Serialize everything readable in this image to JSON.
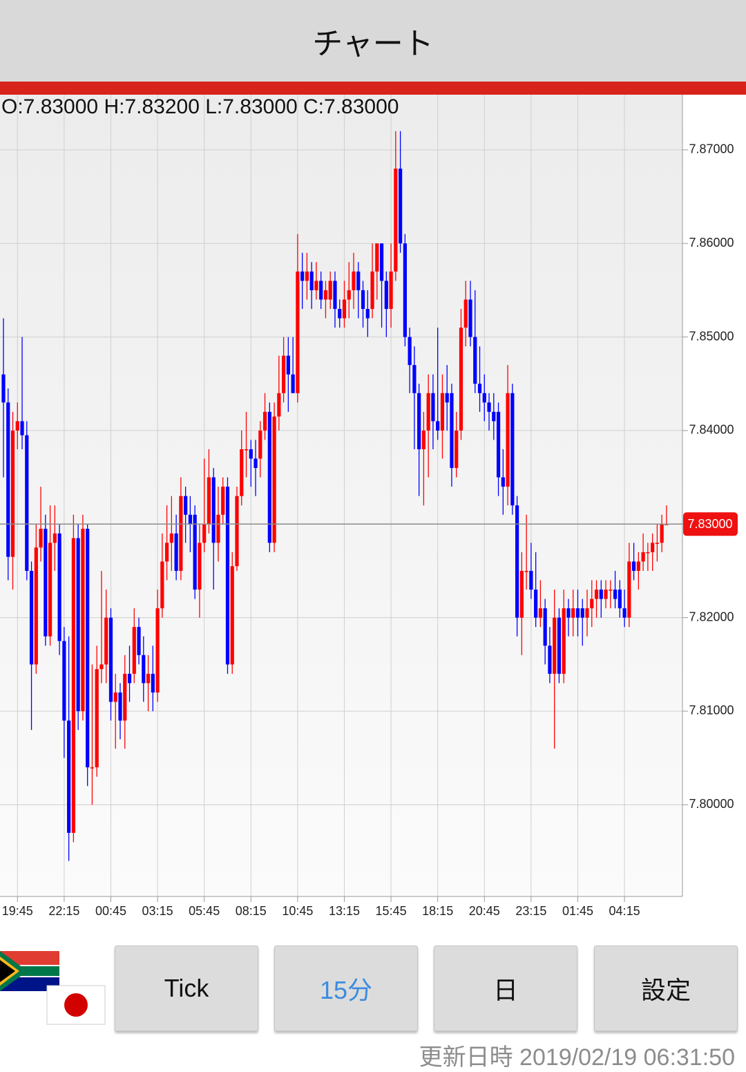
{
  "header": {
    "title": "チャート"
  },
  "ohlc_text": "O:7.83000 H:7.83200 L:7.83000 C:7.83000",
  "chart_data": {
    "type": "candlestick",
    "up_color": "#ff0000",
    "down_color": "#0000ff",
    "grid": true,
    "ylim": [
      7.7902,
      7.8759
    ],
    "yticks": [
      {
        "value": 7.8,
        "label": "7.80000"
      },
      {
        "value": 7.81,
        "label": "7.81000"
      },
      {
        "value": 7.82,
        "label": "7.82000"
      },
      {
        "value": 7.83,
        "label": "7.83000"
      },
      {
        "value": 7.84,
        "label": "7.84000"
      },
      {
        "value": 7.85,
        "label": "7.85000"
      },
      {
        "value": 7.86,
        "label": "7.86000"
      },
      {
        "value": 7.87,
        "label": "7.87000"
      }
    ],
    "xticks": [
      {
        "value": 3,
        "label": "19:45"
      },
      {
        "value": 13,
        "label": "22:15"
      },
      {
        "value": 23,
        "label": "00:45"
      },
      {
        "value": 33,
        "label": "03:15"
      },
      {
        "value": 43,
        "label": "05:45"
      },
      {
        "value": 53,
        "label": "08:15"
      },
      {
        "value": 63,
        "label": "10:45"
      },
      {
        "value": 73,
        "label": "13:15"
      },
      {
        "value": 83,
        "label": "15:45"
      },
      {
        "value": 93,
        "label": "18:15"
      },
      {
        "value": 103,
        "label": "20:45"
      },
      {
        "value": 113,
        "label": "23:15"
      },
      {
        "value": 123,
        "label": "01:45"
      },
      {
        "value": 133,
        "label": "04:15"
      }
    ],
    "last_price": {
      "value": 7.83,
      "label": "7.83000"
    },
    "candles": [
      [
        7.846,
        7.852,
        7.835,
        7.843
      ],
      [
        7.843,
        7.8445,
        7.824,
        7.8265
      ],
      [
        7.8265,
        7.842,
        7.823,
        7.84
      ],
      [
        7.84,
        7.843,
        7.838,
        7.841
      ],
      [
        7.841,
        7.85,
        7.838,
        7.8395
      ],
      [
        7.8395,
        7.841,
        7.824,
        7.825
      ],
      [
        7.825,
        7.826,
        7.808,
        7.815
      ],
      [
        7.815,
        7.83,
        7.814,
        7.8275
      ],
      [
        7.8275,
        7.834,
        7.826,
        7.8295
      ],
      [
        7.8295,
        7.831,
        7.817,
        7.818
      ],
      [
        7.818,
        7.832,
        7.817,
        7.828
      ],
      [
        7.828,
        7.832,
        7.825,
        7.829
      ],
      [
        7.829,
        7.83,
        7.816,
        7.8175
      ],
      [
        7.8175,
        7.819,
        7.805,
        7.809
      ],
      [
        7.809,
        7.818,
        7.794,
        7.797
      ],
      [
        7.797,
        7.831,
        7.796,
        7.8285
      ],
      [
        7.8285,
        7.83,
        7.808,
        7.81
      ],
      [
        7.81,
        7.831,
        7.809,
        7.8295
      ],
      [
        7.8295,
        7.83,
        7.802,
        7.804
      ],
      [
        7.804,
        7.815,
        7.8,
        7.804
      ],
      [
        7.804,
        7.817,
        7.803,
        7.8145
      ],
      [
        7.8145,
        7.825,
        7.813,
        7.815
      ],
      [
        7.815,
        7.823,
        7.813,
        7.82
      ],
      [
        7.82,
        7.821,
        7.809,
        7.811
      ],
      [
        7.811,
        7.814,
        7.806,
        7.812
      ],
      [
        7.812,
        7.813,
        7.807,
        7.809
      ],
      [
        7.809,
        7.816,
        7.806,
        7.814
      ],
      [
        7.814,
        7.817,
        7.811,
        7.813
      ],
      [
        7.814,
        7.821,
        7.813,
        7.819
      ],
      [
        7.819,
        7.82,
        7.815,
        7.816
      ],
      [
        7.816,
        7.818,
        7.811,
        7.813
      ],
      [
        7.813,
        7.816,
        7.81,
        7.814
      ],
      [
        7.814,
        7.817,
        7.81,
        7.812
      ],
      [
        7.812,
        7.823,
        7.811,
        7.821
      ],
      [
        7.821,
        7.829,
        7.82,
        7.826
      ],
      [
        7.826,
        7.832,
        7.824,
        7.828
      ],
      [
        7.828,
        7.833,
        7.825,
        7.829
      ],
      [
        7.829,
        7.831,
        7.824,
        7.825
      ],
      [
        7.825,
        7.835,
        7.824,
        7.833
      ],
      [
        7.833,
        7.834,
        7.828,
        7.831
      ],
      [
        7.831,
        7.833,
        7.827,
        7.83
      ],
      [
        7.831,
        7.832,
        7.822,
        7.823
      ],
      [
        7.823,
        7.83,
        7.82,
        7.828
      ],
      [
        7.828,
        7.837,
        7.827,
        7.83
      ],
      [
        7.83,
        7.838,
        7.829,
        7.835
      ],
      [
        7.835,
        7.836,
        7.823,
        7.828
      ],
      [
        7.828,
        7.834,
        7.826,
        7.831
      ],
      [
        7.831,
        7.835,
        7.83,
        7.834
      ],
      [
        7.834,
        7.835,
        7.814,
        7.815
      ],
      [
        7.815,
        7.827,
        7.814,
        7.8255
      ],
      [
        7.8255,
        7.834,
        7.825,
        7.833
      ],
      [
        7.833,
        7.84,
        7.832,
        7.838
      ],
      [
        7.838,
        7.842,
        7.835,
        7.838
      ],
      [
        7.838,
        7.839,
        7.834,
        7.837
      ],
      [
        7.837,
        7.839,
        7.833,
        7.836
      ],
      [
        7.837,
        7.841,
        7.835,
        7.84
      ],
      [
        7.84,
        7.844,
        7.839,
        7.842
      ],
      [
        7.842,
        7.843,
        7.827,
        7.828
      ],
      [
        7.828,
        7.843,
        7.827,
        7.8415
      ],
      [
        7.8415,
        7.848,
        7.84,
        7.844
      ],
      [
        7.844,
        7.85,
        7.843,
        7.848
      ],
      [
        7.848,
        7.85,
        7.842,
        7.846
      ],
      [
        7.846,
        7.85,
        7.844,
        7.844
      ],
      [
        7.844,
        7.861,
        7.843,
        7.857
      ],
      [
        7.857,
        7.859,
        7.853,
        7.856
      ],
      [
        7.856,
        7.859,
        7.854,
        7.857
      ],
      [
        7.857,
        7.858,
        7.853,
        7.855
      ],
      [
        7.855,
        7.858,
        7.854,
        7.856
      ],
      [
        7.856,
        7.857,
        7.853,
        7.854
      ],
      [
        7.854,
        7.856,
        7.852,
        7.855
      ],
      [
        7.854,
        7.857,
        7.853,
        7.856
      ],
      [
        7.856,
        7.857,
        7.851,
        7.853
      ],
      [
        7.853,
        7.854,
        7.851,
        7.852
      ],
      [
        7.852,
        7.856,
        7.851,
        7.854
      ],
      [
        7.854,
        7.858,
        7.852,
        7.855
      ],
      [
        7.855,
        7.859,
        7.853,
        7.857
      ],
      [
        7.857,
        7.858,
        7.852,
        7.855
      ],
      [
        7.855,
        7.856,
        7.851,
        7.853
      ],
      [
        7.853,
        7.855,
        7.85,
        7.852
      ],
      [
        7.853,
        7.86,
        7.852,
        7.857
      ],
      [
        7.857,
        7.86,
        7.854,
        7.86
      ],
      [
        7.86,
        7.86,
        7.851,
        7.856
      ],
      [
        7.856,
        7.857,
        7.85,
        7.853
      ],
      [
        7.853,
        7.86,
        7.851,
        7.857
      ],
      [
        7.857,
        7.872,
        7.856,
        7.868
      ],
      [
        7.868,
        7.872,
        7.859,
        7.86
      ],
      [
        7.86,
        7.861,
        7.849,
        7.85
      ],
      [
        7.85,
        7.851,
        7.844,
        7.847
      ],
      [
        7.847,
        7.849,
        7.838,
        7.844
      ],
      [
        7.844,
        7.845,
        7.833,
        7.838
      ],
      [
        7.838,
        7.842,
        7.832,
        7.84
      ],
      [
        7.84,
        7.846,
        7.835,
        7.844
      ],
      [
        7.844,
        7.846,
        7.838,
        7.841
      ],
      [
        7.841,
        7.851,
        7.839,
        7.84
      ],
      [
        7.84,
        7.846,
        7.837,
        7.844
      ],
      [
        7.844,
        7.847,
        7.84,
        7.843
      ],
      [
        7.844,
        7.845,
        7.834,
        7.836
      ],
      [
        7.836,
        7.842,
        7.835,
        7.84
      ],
      [
        7.84,
        7.853,
        7.839,
        7.851
      ],
      [
        7.851,
        7.856,
        7.849,
        7.854
      ],
      [
        7.854,
        7.856,
        7.849,
        7.85
      ],
      [
        7.85,
        7.855,
        7.844,
        7.845
      ],
      [
        7.845,
        7.849,
        7.842,
        7.844
      ],
      [
        7.844,
        7.846,
        7.841,
        7.843
      ],
      [
        7.843,
        7.844,
        7.84,
        7.842
      ],
      [
        7.842,
        7.844,
        7.839,
        7.841
      ],
      [
        7.842,
        7.843,
        7.833,
        7.835
      ],
      [
        7.835,
        7.838,
        7.831,
        7.834
      ],
      [
        7.834,
        7.847,
        7.832,
        7.844
      ],
      [
        7.844,
        7.845,
        7.831,
        7.832
      ],
      [
        7.832,
        7.833,
        7.818,
        7.82
      ],
      [
        7.82,
        7.827,
        7.816,
        7.825
      ],
      [
        7.825,
        7.831,
        7.823,
        7.825
      ],
      [
        7.825,
        7.828,
        7.822,
        7.823
      ],
      [
        7.823,
        7.827,
        7.819,
        7.82
      ],
      [
        7.82,
        7.824,
        7.819,
        7.821
      ],
      [
        7.821,
        7.822,
        7.815,
        7.817
      ],
      [
        7.817,
        7.819,
        7.813,
        7.814
      ],
      [
        7.814,
        7.823,
        7.806,
        7.82
      ],
      [
        7.82,
        7.821,
        7.813,
        7.814
      ],
      [
        7.814,
        7.823,
        7.813,
        7.821
      ],
      [
        7.821,
        7.822,
        7.818,
        7.82
      ],
      [
        7.82,
        7.823,
        7.818,
        7.821
      ],
      [
        7.821,
        7.823,
        7.818,
        7.82
      ],
      [
        7.821,
        7.822,
        7.817,
        7.82
      ],
      [
        7.82,
        7.823,
        7.818,
        7.821
      ],
      [
        7.821,
        7.824,
        7.819,
        7.822
      ],
      [
        7.822,
        7.824,
        7.82,
        7.823
      ],
      [
        7.823,
        7.824,
        7.82,
        7.822
      ],
      [
        7.822,
        7.824,
        7.821,
        7.823
      ],
      [
        7.823,
        7.824,
        7.821,
        7.823
      ],
      [
        7.823,
        7.825,
        7.821,
        7.822
      ],
      [
        7.823,
        7.824,
        7.82,
        7.821
      ],
      [
        7.821,
        7.823,
        7.819,
        7.82
      ],
      [
        7.82,
        7.828,
        7.819,
        7.826
      ],
      [
        7.826,
        7.828,
        7.824,
        7.825
      ],
      [
        7.825,
        7.827,
        7.823,
        7.826
      ],
      [
        7.826,
        7.829,
        7.825,
        7.827
      ],
      [
        7.827,
        7.828,
        7.825,
        7.827
      ],
      [
        7.827,
        7.829,
        7.825,
        7.828
      ],
      [
        7.828,
        7.83,
        7.826,
        7.828
      ],
      [
        7.828,
        7.831,
        7.827,
        7.83
      ],
      [
        7.83,
        7.832,
        7.83,
        7.83
      ]
    ]
  },
  "buttons": {
    "items": [
      "Tick",
      "15分",
      "日",
      "設定"
    ],
    "selected": 1
  },
  "update": {
    "label": "更新日時",
    "value": "2019/02/19 06:31:50"
  }
}
